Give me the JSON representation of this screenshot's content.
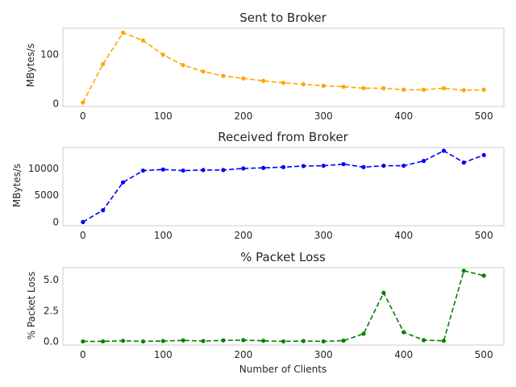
{
  "chart_data": [
    {
      "type": "line",
      "title": "Sent to Broker",
      "xlabel": "",
      "ylabel": "MBytes/s",
      "xlim": [
        -25,
        525
      ],
      "ylim": [
        -6,
        153
      ],
      "xticks": [
        0,
        100,
        200,
        300,
        400,
        500
      ],
      "yticks": [
        0,
        100
      ],
      "grid": false,
      "color": "#ffa500",
      "x": [
        0,
        25,
        50,
        75,
        100,
        125,
        150,
        175,
        200,
        225,
        250,
        275,
        300,
        325,
        350,
        375,
        400,
        425,
        450,
        475,
        500
      ],
      "y": [
        2,
        80,
        144,
        128,
        99,
        78,
        65,
        56,
        51,
        46,
        42,
        39,
        36,
        34,
        31,
        31,
        28,
        28,
        31,
        27,
        28
      ]
    },
    {
      "type": "line",
      "title": "Received from Broker",
      "xlabel": "",
      "ylabel": "MBytes/s",
      "xlim": [
        -25,
        525
      ],
      "ylim": [
        -700,
        13900
      ],
      "xticks": [
        0,
        100,
        200,
        300,
        400,
        500
      ],
      "yticks": [
        0,
        5000,
        10000
      ],
      "grid": false,
      "color": "#0000ff",
      "x": [
        0,
        25,
        50,
        75,
        100,
        125,
        150,
        175,
        200,
        225,
        250,
        275,
        300,
        325,
        350,
        375,
        400,
        425,
        450,
        475,
        500
      ],
      "y": [
        0,
        2200,
        7400,
        9600,
        9800,
        9600,
        9700,
        9700,
        10000,
        10100,
        10250,
        10450,
        10500,
        10800,
        10250,
        10500,
        10500,
        11400,
        13300,
        11100,
        12500
      ]
    },
    {
      "type": "line",
      "title": "% Packet Loss",
      "xlabel": "Number of Clients",
      "ylabel": "% Packet Loss",
      "xlim": [
        -25,
        525
      ],
      "ylim": [
        -0.3,
        6.0
      ],
      "xticks": [
        0,
        100,
        200,
        300,
        400,
        500
      ],
      "yticks": [
        0.0,
        2.5,
        5.0
      ],
      "ytick_labels": [
        "0.0",
        "2.5",
        "5.0"
      ],
      "grid": false,
      "color": "#008000",
      "x": [
        0,
        25,
        50,
        75,
        100,
        125,
        150,
        175,
        200,
        225,
        250,
        275,
        300,
        325,
        350,
        375,
        400,
        425,
        450,
        475,
        500
      ],
      "y": [
        0.0,
        0.0,
        0.05,
        0.0,
        0.03,
        0.08,
        0.03,
        0.08,
        0.1,
        0.05,
        0.0,
        0.03,
        0.0,
        0.06,
        0.62,
        3.95,
        0.75,
        0.1,
        0.05,
        5.75,
        5.35
      ]
    }
  ]
}
